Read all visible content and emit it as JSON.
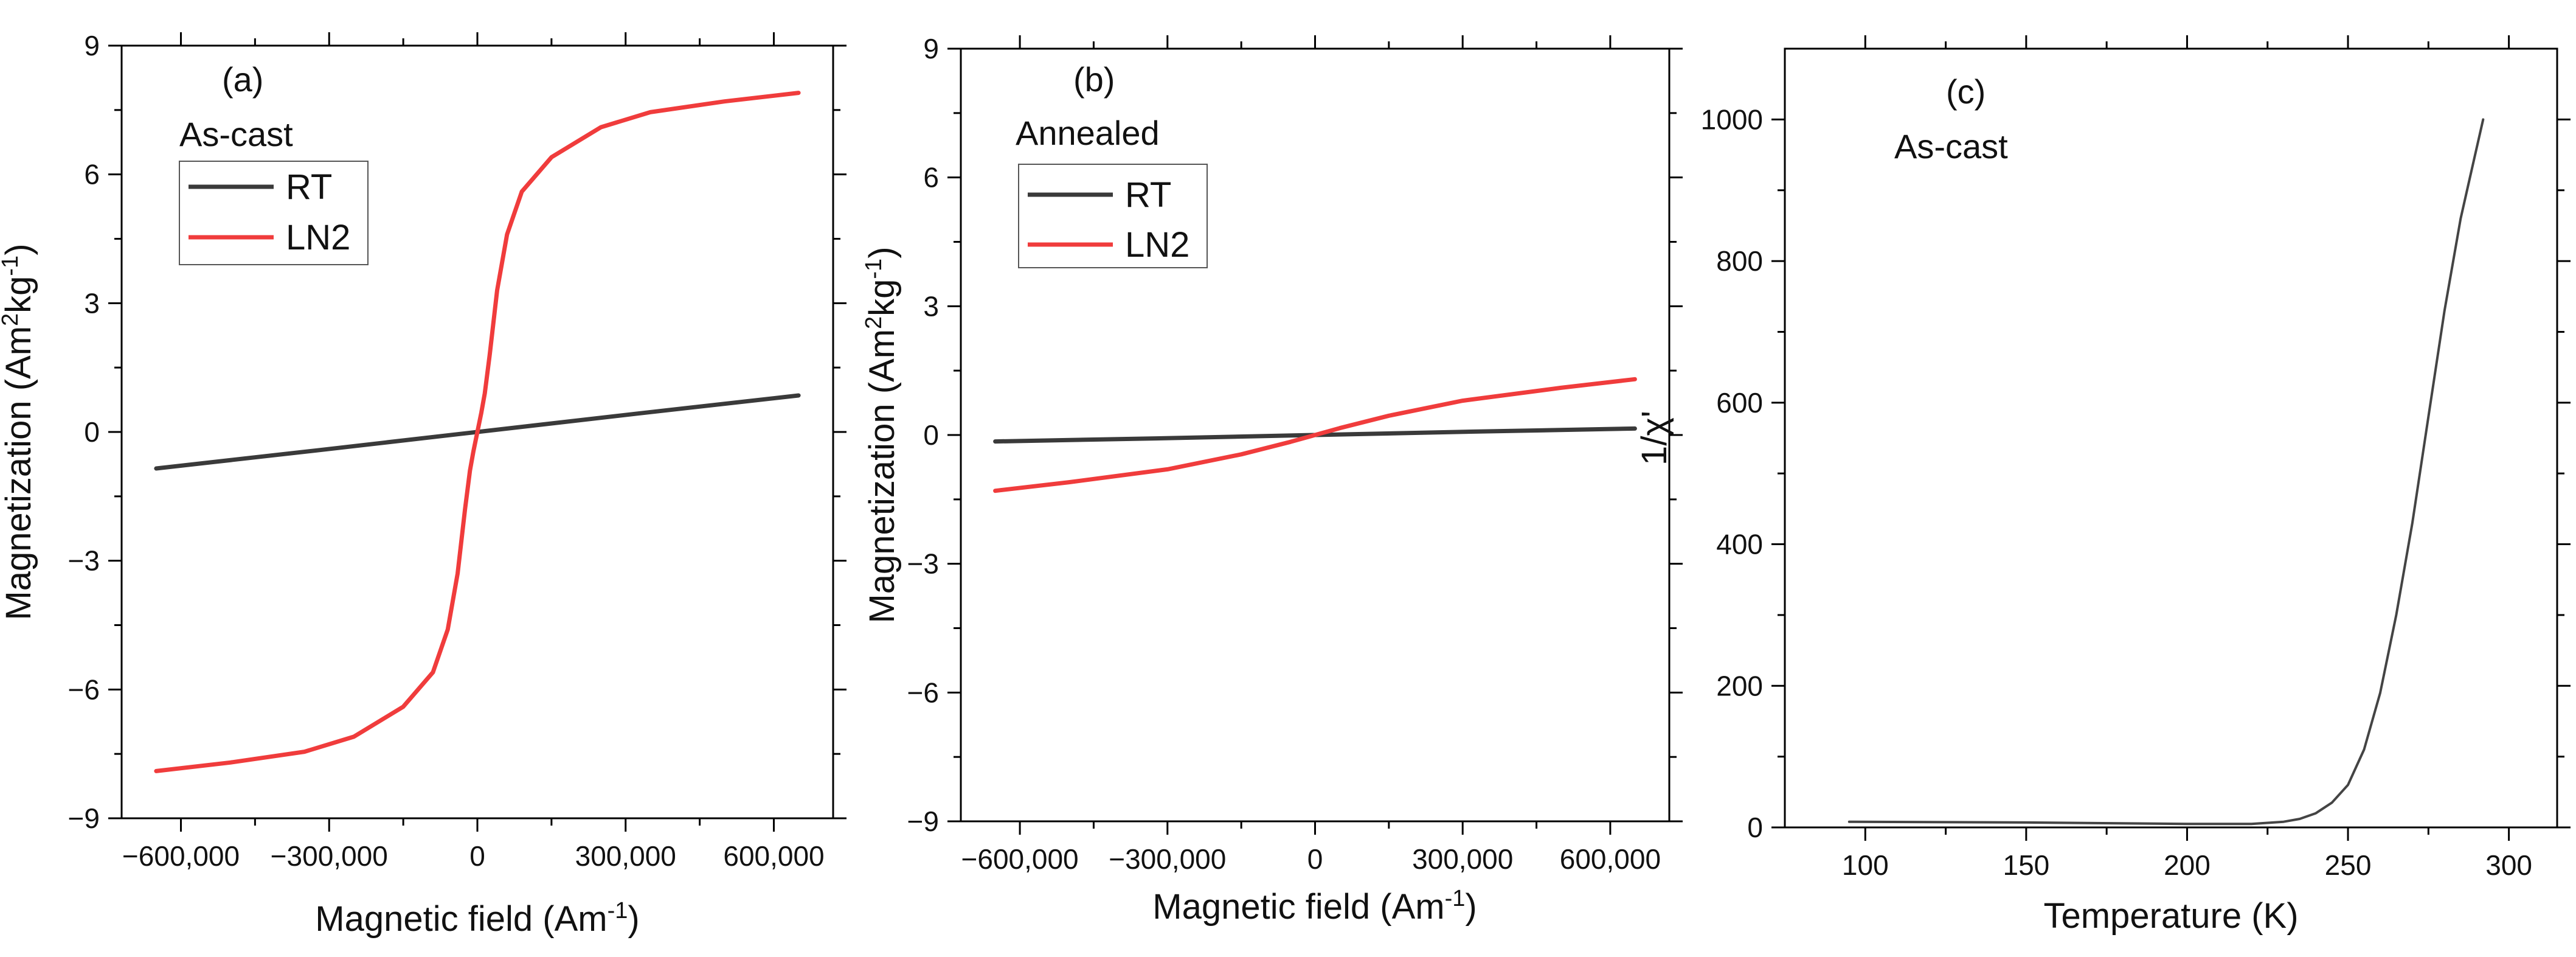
{
  "figure": {
    "colors": {
      "rt": "#3a3a3a",
      "ln2": "#f03c3c",
      "curve": "#444444",
      "axis": "#000000"
    }
  },
  "chart_data": [
    {
      "id": "a",
      "type": "line",
      "panel_label": "(a)",
      "sample_label": "As-cast",
      "xlabel": "Magnetic field (Am",
      "xlabel_sup": "-1",
      "xlabel_end": ")",
      "ylabel": "Magnetization (Am",
      "ylabel_sup1": "2",
      "ylabel_mid": "kg",
      "ylabel_sup2": "-1",
      "ylabel_end": ")",
      "xlim": [
        -720000,
        720000
      ],
      "ylim": [
        -9,
        9
      ],
      "xticks": [
        -600000,
        -300000,
        0,
        300000,
        600000
      ],
      "xtick_labels": [
        "-600,000",
        "-300,000",
        "0",
        "300,000",
        "600,000"
      ],
      "yticks": [
        -9,
        -6,
        -3,
        0,
        3,
        6,
        9
      ],
      "ytick_labels": [
        "-9",
        "-6",
        "-3",
        "0",
        "3",
        "6",
        "9"
      ],
      "legend": [
        "RT",
        "LN2"
      ],
      "series": [
        {
          "name": "RT",
          "color": "#3a3a3a",
          "x": [
            -650000,
            -325000,
            0,
            325000,
            650000
          ],
          "y": [
            -0.85,
            -0.43,
            0,
            0.43,
            0.85
          ]
        },
        {
          "name": "LN2",
          "color": "#f03c3c",
          "x": [
            -650000,
            -500000,
            -350000,
            -250000,
            -150000,
            -90000,
            -60000,
            -40000,
            -25000,
            -15000,
            -8000,
            0,
            8000,
            15000,
            25000,
            40000,
            60000,
            90000,
            150000,
            250000,
            350000,
            500000,
            650000
          ],
          "y": [
            -7.9,
            -7.7,
            -7.45,
            -7.1,
            -6.4,
            -5.6,
            -4.6,
            -3.3,
            -1.8,
            -0.9,
            -0.45,
            0,
            0.45,
            0.9,
            1.8,
            3.3,
            4.6,
            5.6,
            6.4,
            7.1,
            7.45,
            7.7,
            7.9
          ]
        }
      ]
    },
    {
      "id": "b",
      "type": "line",
      "panel_label": "(b)",
      "sample_label": "Annealed",
      "xlabel": "Magnetic field (Am",
      "xlabel_sup": "-1",
      "xlabel_end": ")",
      "ylabel": "Magnetization (Am",
      "ylabel_sup1": "2",
      "ylabel_mid": "kg",
      "ylabel_sup2": "-1",
      "ylabel_end": ")",
      "xlim": [
        -720000,
        720000
      ],
      "ylim": [
        -9,
        9
      ],
      "xticks": [
        -600000,
        -300000,
        0,
        300000,
        600000
      ],
      "xtick_labels": [
        "-600,000",
        "-300,000",
        "0",
        "300,000",
        "600,000"
      ],
      "yticks": [
        -9,
        -6,
        -3,
        0,
        3,
        6,
        9
      ],
      "ytick_labels": [
        "-9",
        "-6",
        "-3",
        "0",
        "3",
        "6",
        "9"
      ],
      "legend": [
        "RT",
        "LN2"
      ],
      "series": [
        {
          "name": "RT",
          "color": "#3a3a3a",
          "x": [
            -650000,
            -325000,
            0,
            325000,
            650000
          ],
          "y": [
            -0.15,
            -0.08,
            0,
            0.08,
            0.15
          ]
        },
        {
          "name": "LN2",
          "color": "#f03c3c",
          "x": [
            -650000,
            -500000,
            -300000,
            -150000,
            -50000,
            0,
            50000,
            150000,
            300000,
            500000,
            650000
          ],
          "y": [
            -1.3,
            -1.1,
            -0.8,
            -0.45,
            -0.16,
            0,
            0.16,
            0.45,
            0.8,
            1.1,
            1.3
          ]
        }
      ]
    },
    {
      "id": "c",
      "type": "line",
      "panel_label": "(c)",
      "sample_label": "As-cast",
      "xlabel": "Temperature (K)",
      "ylabel": "1/χ'",
      "xlim": [
        75,
        315
      ],
      "ylim": [
        0,
        1100
      ],
      "xticks": [
        100,
        150,
        200,
        250,
        300
      ],
      "xtick_labels": [
        "100",
        "150",
        "200",
        "250",
        "300"
      ],
      "yticks": [
        0,
        200,
        400,
        600,
        800,
        1000
      ],
      "ytick_labels": [
        "0",
        "200",
        "400",
        "600",
        "800",
        "1000"
      ],
      "series": [
        {
          "name": "1/χ'",
          "color": "#444444",
          "x": [
            95,
            150,
            200,
            220,
            230,
            235,
            240,
            245,
            250,
            255,
            260,
            265,
            270,
            275,
            280,
            285,
            288,
            290,
            292
          ],
          "y": [
            8,
            7,
            5,
            5,
            8,
            12,
            20,
            35,
            60,
            110,
            190,
            300,
            430,
            580,
            730,
            860,
            920,
            960,
            1000
          ]
        }
      ]
    }
  ]
}
